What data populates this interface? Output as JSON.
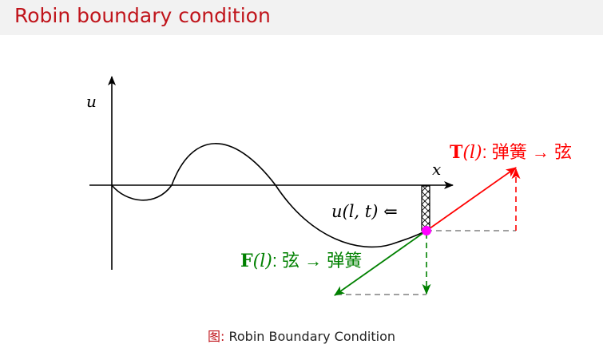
{
  "header": {
    "title": "Robin boundary condition"
  },
  "diagram": {
    "axis_u": "u",
    "axis_x": "x",
    "displacement_label": "u(l, t) ⇐",
    "tension": {
      "symbol": "T",
      "arg": "(l)",
      "text": ": 弹簧 → 弦",
      "color": "#ff0000"
    },
    "force": {
      "symbol": "F",
      "arg": "(l)",
      "text": ": 弦 → 弹簧",
      "color": "#008000"
    },
    "point_color": "#ff00ff"
  },
  "caption": {
    "label": "图:",
    "text": " Robin Boundary Condition"
  }
}
